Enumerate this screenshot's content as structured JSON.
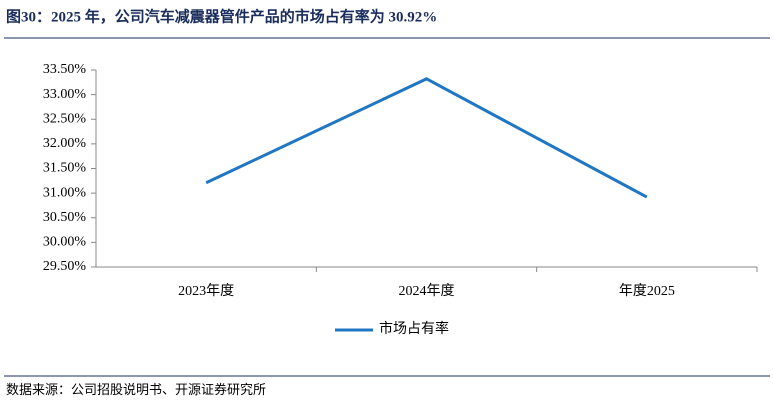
{
  "chart_data": {
    "type": "line",
    "title": "图30：2025 年，公司汽车减震器管件产品的市场占有率为 30.92%",
    "categories": [
      "2023年度",
      "2024年度",
      "年度2025"
    ],
    "series": [
      {
        "name": "市场占有率",
        "color": "#1f77c4",
        "values": [
          31.21,
          33.32,
          30.92
        ]
      }
    ],
    "ylim": [
      29.5,
      33.5
    ],
    "yticks": [
      {
        "value": 29.5,
        "label": "29.50%"
      },
      {
        "value": 30,
        "label": "30.00%"
      },
      {
        "value": 30.5,
        "label": "30.50%"
      },
      {
        "value": 31,
        "label": "31.00%"
      },
      {
        "value": 31.5,
        "label": "31.50%"
      },
      {
        "value": 32,
        "label": "32.00%"
      },
      {
        "value": 32.5,
        "label": "32.50%"
      },
      {
        "value": 33,
        "label": "33.00%"
      },
      {
        "value": 33.5,
        "label": "33.50%"
      }
    ],
    "grid": false,
    "legend": "bottom",
    "source": "数据来源：公司招股说明书、开源证券研究所"
  }
}
